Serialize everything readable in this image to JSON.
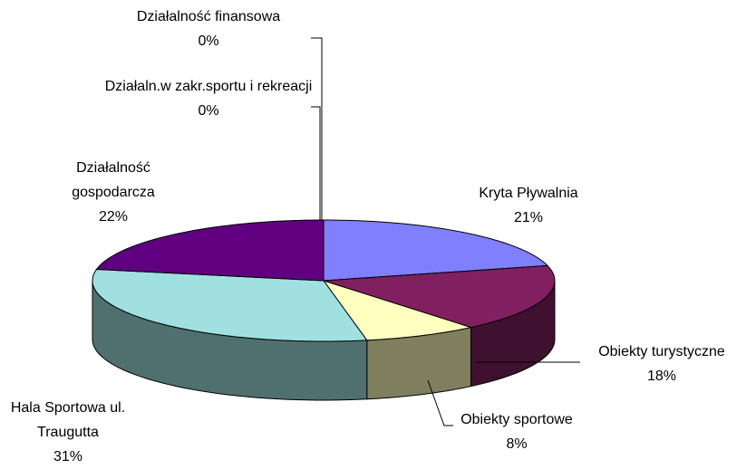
{
  "chart_data": {
    "type": "pie",
    "categories": [
      "Kryta Pływalnia",
      "Obiekty turystyczne",
      "Obiekty sportowe",
      "Hala Sportowa ul. Traugutta",
      "Działalność gospodarcza",
      "Działaln.w zakr.sportu i rekreacji",
      "Działalność finansowa"
    ],
    "values": [
      21,
      18,
      8,
      31,
      22,
      0,
      0
    ],
    "value_labels": [
      "21%",
      "18%",
      "8%",
      "31%",
      "22%",
      "0%",
      "0%"
    ],
    "colors": [
      "#8080ff",
      "#802060",
      "#ffffc0",
      "#a0e0e0",
      "#600080",
      "#4060a0",
      "#ffffff"
    ]
  }
}
